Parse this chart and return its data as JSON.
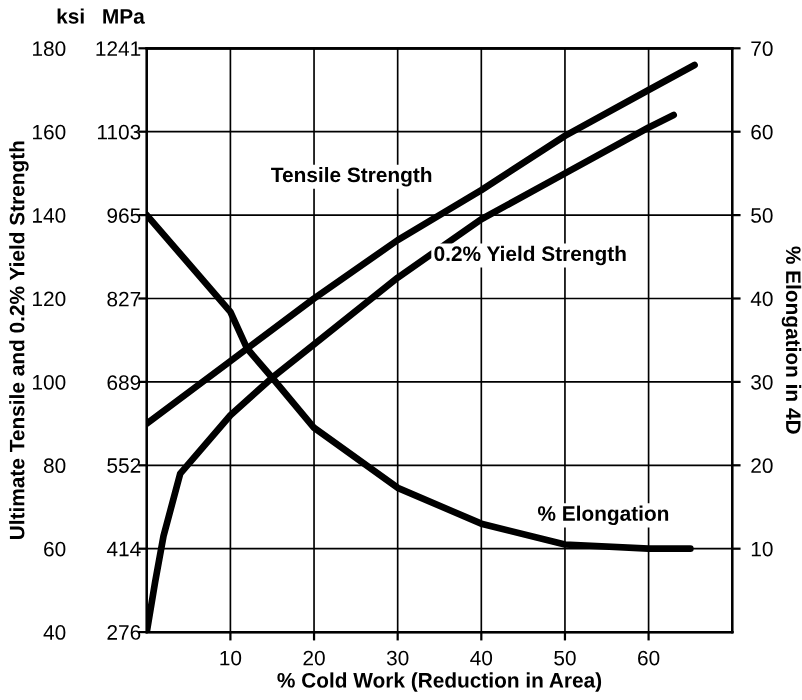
{
  "chart_data": {
    "type": "line",
    "xlabel": "% Cold Work (Reduction in Area)",
    "ylabel": "Ultimate Tensile and 0.2% Yield Strength",
    "y2label": "% Elongation in 4D",
    "annotations": [
      "ksi",
      "MPa"
    ],
    "xlim": [
      0,
      70
    ],
    "xticks": [
      10,
      20,
      30,
      40,
      50,
      60
    ],
    "ylim": [
      40,
      180
    ],
    "yticks": [
      40,
      60,
      80,
      100,
      120,
      140,
      160,
      180
    ],
    "y3lim": [
      276,
      1241
    ],
    "y3ticks": [
      276,
      414,
      552,
      689,
      827,
      965,
      1103,
      1241
    ],
    "y2lim": [
      0,
      70
    ],
    "y2ticks": [
      10,
      20,
      30,
      40,
      50,
      60,
      70
    ],
    "grid": true,
    "legend": false,
    "marker": "none",
    "line_style": "solid",
    "series": [
      {
        "name": "Tensile Strength",
        "color": "#000000",
        "x": [
          0,
          10,
          20,
          30,
          40,
          50,
          60,
          65.5
        ],
        "values": [
          90,
          105,
          120,
          134,
          146,
          159,
          170,
          176
        ]
      },
      {
        "name": "0.2% Yield Strength",
        "color": "#000000",
        "x": [
          0,
          1,
          2,
          4,
          10,
          15,
          20,
          30,
          40,
          50,
          60,
          63
        ],
        "values": [
          40,
          52,
          63,
          78,
          92,
          101,
          109,
          125,
          139,
          150,
          161,
          164
        ]
      },
      {
        "name": "% Elongation",
        "color": "#000000",
        "axis": "y2",
        "x": [
          0,
          10,
          12,
          15,
          20,
          30,
          40,
          50,
          60,
          65
        ],
        "values": [
          50,
          38.4,
          34,
          30.5,
          24.5,
          17.3,
          13,
          10.5,
          10,
          10
        ]
      }
    ]
  }
}
